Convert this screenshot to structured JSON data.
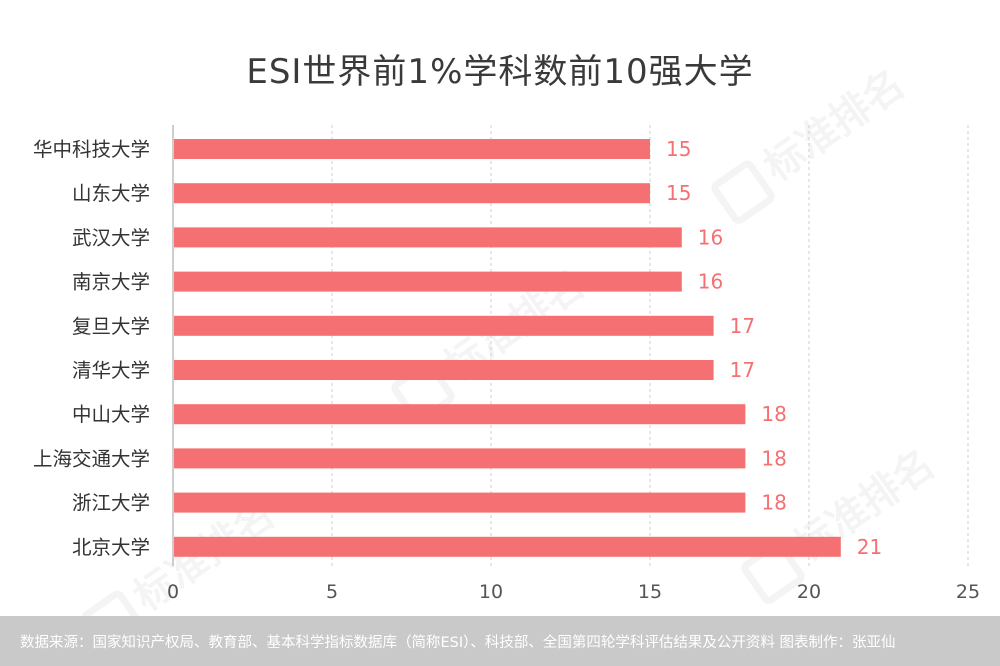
{
  "chart_data": {
    "type": "bar",
    "orientation": "horizontal",
    "title": "ESI世界前1%学科数前10强大学",
    "categories": [
      "华中科技大学",
      "山东大学",
      "武汉大学",
      "南京大学",
      "复旦大学",
      "清华大学",
      "中山大学",
      "上海交通大学",
      "浙江大学",
      "北京大学"
    ],
    "values": [
      15,
      15,
      16,
      16,
      17,
      17,
      18,
      18,
      18,
      21
    ],
    "xlim": [
      0,
      25
    ],
    "xticks": [
      "0",
      "5",
      "10",
      "15",
      "20",
      "25"
    ],
    "xlabel": "",
    "ylabel": "",
    "grid": "vertical dashed",
    "bar_color": "#f57072",
    "label_color": "#f57072"
  },
  "watermark": {
    "text": "标准排名",
    "icon": "logo-mark-icon"
  },
  "footer": {
    "source": "数据来源：国家知识产权局、教育部、基本科学指标数据库（简称ESI）、科技部、全国第四轮学科评估结果及公开资料  图表制作：张亚仙"
  }
}
